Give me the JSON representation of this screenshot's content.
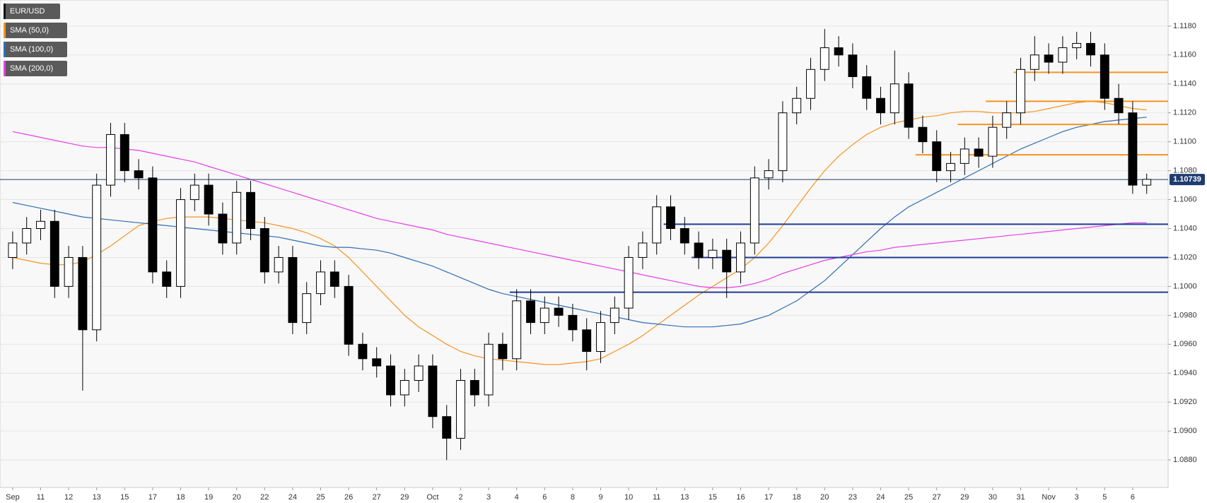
{
  "chart_data": {
    "type": "candlestick",
    "categories": [
      "Sep",
      null,
      "11",
      null,
      "12",
      null,
      "13",
      null,
      "15",
      null,
      "17",
      null,
      "18",
      null,
      "19",
      null,
      "20",
      null,
      "22",
      null,
      "24",
      null,
      "25",
      null,
      "26",
      null,
      "27",
      null,
      "29",
      null,
      "Oct",
      null,
      "2",
      null,
      "3",
      null,
      "4",
      null,
      "6",
      null,
      "8",
      null,
      "9",
      null,
      "10",
      null,
      "11",
      null,
      "13",
      null,
      "15",
      null,
      "16",
      null,
      "17",
      null,
      "18",
      null,
      "20",
      null,
      "23",
      null,
      "24",
      null,
      "25",
      null,
      "27",
      null,
      "29",
      null,
      "30",
      null,
      "31",
      null,
      "Nov",
      null,
      "3",
      null,
      "5",
      null,
      "6",
      null
    ],
    "series": [
      {
        "name": "EUR/USD",
        "color": "#000000",
        "open": [
          1.102,
          1.103,
          1.104,
          1.1045,
          1.1,
          1.102,
          1.097,
          1.107,
          1.1105,
          1.108,
          1.1075,
          1.101,
          1.1,
          1.106,
          1.107,
          1.105,
          1.103,
          1.1065,
          1.104,
          1.101,
          1.102,
          1.0975,
          1.0995,
          1.101,
          1.1,
          1.096,
          1.095,
          1.0945,
          1.0925,
          1.0935,
          1.0945,
          1.091,
          1.0895,
          1.0935,
          1.0925,
          1.096,
          1.095,
          1.099,
          1.0975,
          1.0985,
          1.098,
          1.097,
          1.0955,
          1.0975,
          1.0985,
          1.102,
          1.103,
          1.1055,
          1.104,
          1.103,
          1.102,
          1.1025,
          1.101,
          1.103,
          1.1075,
          1.108,
          1.112,
          1.113,
          1.115,
          1.1165,
          1.116,
          1.1145,
          1.113,
          1.112,
          1.114,
          1.111,
          1.11,
          1.108,
          1.1085,
          1.1095,
          1.109,
          1.111,
          1.112,
          1.115,
          1.116,
          1.1155,
          1.1165,
          1.1168,
          1.116,
          1.113,
          1.112,
          1.107
        ],
        "high": [
          1.1038,
          1.1048,
          1.1053,
          1.1053,
          1.1028,
          1.1028,
          1.1078,
          1.1113,
          1.1113,
          1.1088,
          1.1083,
          1.1018,
          1.1068,
          1.1078,
          1.1078,
          1.1058,
          1.1073,
          1.1073,
          1.1048,
          1.1028,
          1.1028,
          1.1003,
          1.1018,
          1.1018,
          1.1008,
          1.0968,
          1.0958,
          1.0953,
          1.0943,
          1.0953,
          1.0953,
          1.0918,
          1.0943,
          1.0943,
          1.0968,
          1.0968,
          1.0998,
          1.0998,
          1.0993,
          1.0993,
          1.0988,
          1.0978,
          1.0983,
          1.0993,
          1.1028,
          1.1038,
          1.1063,
          1.1063,
          1.1048,
          1.1038,
          1.1033,
          1.1033,
          1.1038,
          1.1083,
          1.1088,
          1.1128,
          1.1138,
          1.1158,
          1.1178,
          1.1173,
          1.1168,
          1.1153,
          1.1138,
          1.1163,
          1.1148,
          1.1118,
          1.1108,
          1.1093,
          1.1103,
          1.1103,
          1.1118,
          1.1128,
          1.1158,
          1.1173,
          1.1168,
          1.1173,
          1.1176,
          1.1176,
          1.1168,
          1.114,
          1.1128,
          1.1078
        ],
        "low": [
          1.1012,
          1.1022,
          1.1032,
          1.0992,
          1.0992,
          1.0928,
          1.0962,
          1.1062,
          1.1072,
          1.1067,
          1.1002,
          1.0992,
          1.0992,
          1.1052,
          1.1042,
          1.1022,
          1.1022,
          1.1032,
          1.1002,
          1.1002,
          1.0967,
          1.0967,
          1.0987,
          1.0992,
          1.0952,
          1.0942,
          1.0937,
          1.0917,
          1.0917,
          1.0927,
          1.0902,
          1.088,
          1.0887,
          1.0917,
          1.0917,
          1.0942,
          1.0942,
          1.0967,
          1.0967,
          1.0972,
          1.0962,
          1.0942,
          1.0947,
          1.0967,
          1.0977,
          1.1012,
          1.1022,
          1.1032,
          1.1022,
          1.1012,
          1.1012,
          1.0992,
          1.1002,
          1.1022,
          1.1067,
          1.1072,
          1.1112,
          1.1122,
          1.1142,
          1.1152,
          1.1137,
          1.1122,
          1.1112,
          1.1112,
          1.1102,
          1.1092,
          1.1072,
          1.1072,
          1.1077,
          1.1082,
          1.1082,
          1.1102,
          1.1112,
          1.1142,
          1.1147,
          1.1147,
          1.1157,
          1.1152,
          1.1122,
          1.1112,
          1.1064,
          1.1064
        ],
        "close": [
          1.103,
          1.104,
          1.1045,
          1.1,
          1.102,
          1.097,
          1.107,
          1.1105,
          1.108,
          1.1075,
          1.101,
          1.1,
          1.106,
          1.107,
          1.105,
          1.103,
          1.1065,
          1.104,
          1.101,
          1.102,
          1.0975,
          1.0995,
          1.101,
          1.1,
          1.096,
          1.095,
          1.0945,
          1.0925,
          1.0935,
          1.0945,
          1.091,
          1.0895,
          1.0935,
          1.0925,
          1.096,
          1.095,
          1.099,
          1.0975,
          1.0985,
          1.098,
          1.097,
          1.0955,
          1.0975,
          1.0985,
          1.102,
          1.103,
          1.1055,
          1.104,
          1.103,
          1.102,
          1.1025,
          1.101,
          1.103,
          1.1075,
          1.108,
          1.112,
          1.113,
          1.115,
          1.1165,
          1.116,
          1.1145,
          1.113,
          1.112,
          1.114,
          1.111,
          1.11,
          1.108,
          1.1085,
          1.1095,
          1.109,
          1.111,
          1.112,
          1.115,
          1.116,
          1.1155,
          1.1165,
          1.1168,
          1.116,
          1.113,
          1.112,
          1.107,
          1.1074
        ]
      }
    ],
    "overlays": [
      {
        "name": "SMA (50,0)",
        "color": "#f7931e",
        "values": [
          1.102,
          1.1018,
          1.1016,
          1.1015,
          1.1015,
          1.1017,
          1.1022,
          1.1028,
          1.1035,
          1.1042,
          1.1045,
          1.1047,
          1.1048,
          1.1048,
          1.1048,
          1.1047,
          1.1046,
          1.1045,
          1.1044,
          1.1042,
          1.104,
          1.1037,
          1.1033,
          1.1028,
          1.102,
          1.101,
          1.1,
          1.099,
          1.098,
          1.0972,
          1.0966,
          1.096,
          1.0955,
          1.0952,
          1.095,
          1.0949,
          1.0948,
          1.0947,
          1.0946,
          1.0946,
          1.0947,
          1.0948,
          1.095,
          1.0955,
          1.096,
          1.0966,
          1.0973,
          1.098,
          1.0987,
          1.0994,
          1.1,
          1.1006,
          1.1012,
          1.102,
          1.103,
          1.1042,
          1.1055,
          1.1068,
          1.108,
          1.109,
          1.1098,
          1.1105,
          1.111,
          1.1113,
          1.1115,
          1.1117,
          1.1118,
          1.112,
          1.1121,
          1.1121,
          1.112,
          1.112,
          1.112,
          1.1121,
          1.1123,
          1.1125,
          1.1127,
          1.1128,
          1.1127,
          1.1125,
          1.1123,
          1.1122
        ]
      },
      {
        "name": "SMA (100,0)",
        "color": "#2f6db5",
        "values": [
          1.1058,
          1.1056,
          1.1054,
          1.1052,
          1.105,
          1.1048,
          1.1047,
          1.1046,
          1.1045,
          1.1044,
          1.1043,
          1.1042,
          1.1041,
          1.104,
          1.1039,
          1.1038,
          1.1037,
          1.1036,
          1.1035,
          1.1034,
          1.1032,
          1.103,
          1.1028,
          1.1027,
          1.1027,
          1.1026,
          1.1025,
          1.1023,
          1.102,
          1.1017,
          1.1014,
          1.101,
          1.1006,
          1.1002,
          1.0998,
          1.0995,
          1.0993,
          1.0991,
          1.0989,
          1.0987,
          1.0985,
          1.0983,
          1.0981,
          1.0979,
          1.0977,
          1.0975,
          1.0974,
          1.0973,
          1.0972,
          1.0972,
          1.0972,
          1.0973,
          1.0974,
          1.0977,
          1.098,
          1.0985,
          1.099,
          1.0997,
          1.1004,
          1.1013,
          1.1022,
          1.1031,
          1.104,
          1.1048,
          1.1055,
          1.106,
          1.1065,
          1.107,
          1.1075,
          1.108,
          1.1085,
          1.109,
          1.1095,
          1.1099,
          1.1103,
          1.1107,
          1.111,
          1.1112,
          1.1114,
          1.1115,
          1.1116,
          1.1117
        ]
      },
      {
        "name": "SMA (200,0)",
        "color": "#e83ee8",
        "values": [
          1.1107,
          1.1105,
          1.1103,
          1.1101,
          1.1099,
          1.1097,
          1.1096,
          1.1096,
          1.1095,
          1.1094,
          1.1092,
          1.109,
          1.1088,
          1.1086,
          1.1083,
          1.108,
          1.1077,
          1.1074,
          1.1071,
          1.1068,
          1.1065,
          1.1062,
          1.1059,
          1.1056,
          1.1053,
          1.105,
          1.1047,
          1.1045,
          1.1043,
          1.1041,
          1.1039,
          1.1036,
          1.1034,
          1.1032,
          1.103,
          1.1028,
          1.1026,
          1.1024,
          1.1022,
          1.102,
          1.1018,
          1.1016,
          1.1014,
          1.1012,
          1.101,
          1.1008,
          1.1006,
          1.1004,
          1.1002,
          1.1,
          1.0999,
          1.0999,
          1.1,
          1.1002,
          1.1005,
          1.1009,
          1.1012,
          1.1015,
          1.1018,
          1.102,
          1.1022,
          1.1024,
          1.1025,
          1.1027,
          1.1028,
          1.1029,
          1.103,
          1.1031,
          1.1032,
          1.1033,
          1.1034,
          1.1035,
          1.1036,
          1.1037,
          1.1038,
          1.1039,
          1.104,
          1.1041,
          1.1042,
          1.1043,
          1.1044,
          1.1044
        ]
      }
    ],
    "levels": [
      {
        "value": 1.1148,
        "start": 72,
        "color": "#f7931e"
      },
      {
        "value": 1.1128,
        "start": 70,
        "color": "#f7931e"
      },
      {
        "value": 1.1112,
        "start": 68,
        "color": "#f7931e"
      },
      {
        "value": 1.1091,
        "start": 65,
        "color": "#f7931e"
      },
      {
        "value": 1.1043,
        "start": 47,
        "color": "#1f3c99"
      },
      {
        "value": 1.102,
        "start": 49,
        "color": "#1f3c99"
      },
      {
        "value": 1.0996,
        "start": 36,
        "color": "#1f3c99"
      }
    ],
    "last_price": 1.10739,
    "last_price_color": "#1f3c70",
    "ylim": [
      1.0861,
      1.1198
    ],
    "yticks": [
      {
        "value": 1.088,
        "label": "1.0880"
      },
      {
        "value": 1.09,
        "label": "1.0900"
      },
      {
        "value": 1.092,
        "label": "1.0920"
      },
      {
        "value": 1.094,
        "label": "1.0940"
      },
      {
        "value": 1.096,
        "label": "1.0960"
      },
      {
        "value": 1.098,
        "label": "1.0980"
      },
      {
        "value": 1.1,
        "label": "1.1000"
      },
      {
        "value": 1.102,
        "label": "1.1020"
      },
      {
        "value": 1.104,
        "label": "1.1040"
      },
      {
        "value": 1.106,
        "label": "1.1060"
      },
      {
        "value": 1.108,
        "label": "1.1080"
      },
      {
        "value": 1.11,
        "label": "1.1100"
      },
      {
        "value": 1.112,
        "label": "1.1120"
      },
      {
        "value": 1.114,
        "label": "1.1140"
      },
      {
        "value": 1.116,
        "label": "1.1160"
      },
      {
        "value": 1.118,
        "label": "1.1180"
      }
    ],
    "grid": true
  }
}
